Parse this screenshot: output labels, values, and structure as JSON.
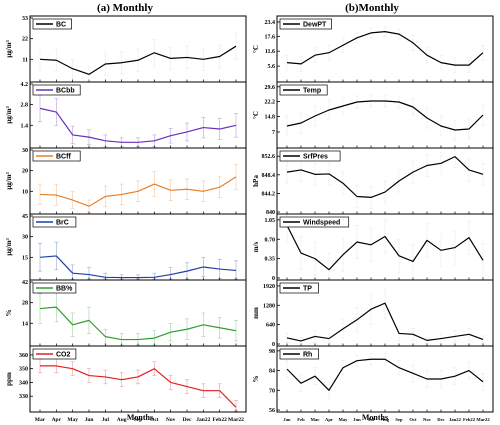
{
  "panel_titles": {
    "left": "(a) Monthly",
    "right": "(b)Monthly"
  },
  "chart_data": [
    {
      "type": "line",
      "panel": "left",
      "categories": [
        "Mar",
        "Apr",
        "May",
        "Jun",
        "Jul",
        "Aug",
        "Sep",
        "Oct",
        "Nov",
        "Dec",
        "Jan22",
        "Feb22",
        "Mar22"
      ],
      "xlabel": "Months",
      "subplots": [
        {
          "name": "BC",
          "ylabel": "μg/m³",
          "color": "#000000",
          "ylim": [
            0,
            33
          ],
          "yticks": [
            11,
            22,
            33
          ],
          "values": [
            11,
            10.5,
            6,
            3,
            8.5,
            9.2,
            10.5,
            14.5,
            11.5,
            12,
            11,
            12.5,
            18
          ],
          "errors": [
            6,
            6,
            5,
            4,
            6,
            6,
            6,
            7,
            6,
            6,
            6,
            6,
            7
          ]
        },
        {
          "name": "BCbb",
          "ylabel": "μg/m³",
          "color": "#6a2fb8",
          "ylim": [
            0,
            4.2
          ],
          "yticks": [
            1.4,
            2.8,
            4.2
          ],
          "values": [
            2.55,
            2.3,
            0.75,
            0.6,
            0.35,
            0.25,
            0.25,
            0.35,
            0.7,
            0.95,
            1.25,
            1.15,
            1.4
          ],
          "errors": [
            0.9,
            0.9,
            0.6,
            0.5,
            0.4,
            0.3,
            0.3,
            0.4,
            0.5,
            0.6,
            0.7,
            0.7,
            0.8
          ]
        },
        {
          "name": "BCff",
          "ylabel": "μg/m³",
          "color": "#e8802a",
          "ylim": [
            0,
            30
          ],
          "yticks": [
            10,
            20,
            30
          ],
          "values": [
            8.5,
            8.2,
            5.8,
            2.8,
            7.5,
            8.5,
            10,
            13.5,
            10.5,
            11,
            10,
            12,
            17
          ],
          "errors": [
            5,
            5,
            4,
            3,
            5,
            5,
            5,
            6,
            5,
            5,
            5,
            5,
            6
          ]
        },
        {
          "name": "BrC",
          "ylabel": "μg/m³",
          "color": "#1f3fa8",
          "ylim": [
            0,
            45
          ],
          "yticks": [
            15,
            30,
            45
          ],
          "values": [
            15,
            16,
            3.5,
            2.5,
            0.5,
            0.3,
            0.3,
            0.5,
            2.5,
            5,
            8,
            6.5,
            5.5
          ],
          "errors": [
            10,
            10,
            6,
            5,
            3,
            2,
            2,
            3,
            5,
            6,
            7,
            7,
            7
          ]
        },
        {
          "name": "BB%",
          "ylabel": "%",
          "color": "#2e9e2e",
          "ylim": [
            0,
            42
          ],
          "yticks": [
            14,
            28,
            42
          ],
          "values": [
            24,
            25,
            13,
            16,
            5,
            3,
            3,
            4,
            8,
            10,
            13,
            11,
            9
          ],
          "errors": [
            10,
            10,
            8,
            9,
            5,
            4,
            4,
            5,
            6,
            7,
            8,
            7,
            7
          ]
        },
        {
          "name": "CO2",
          "ylabel": "ppm",
          "color": "#e02020",
          "ylim": [
            320,
            365
          ],
          "yticks": [
            330,
            340,
            350,
            360
          ],
          "values": [
            352,
            352,
            350,
            345,
            344,
            342,
            344,
            350,
            340,
            337,
            334,
            334,
            322
          ],
          "errors": [
            5,
            5,
            5,
            5,
            5,
            5,
            5,
            5,
            5,
            5,
            5,
            5,
            5
          ]
        }
      ]
    },
    {
      "type": "line",
      "panel": "right",
      "categories": [
        "Jan",
        "Feb",
        "Mar",
        "Apr",
        "May",
        "Jun",
        "Jul",
        "Aug",
        "Sep",
        "Oct",
        "Nov",
        "Dec",
        "Jan22",
        "Feb22",
        "Mar22"
      ],
      "xlabel": "Months",
      "subplots": [
        {
          "name": "DewPT",
          "ylabel": "°C",
          "color": "#000000",
          "ylim": [
            0,
            25
          ],
          "yticks": [
            5.6,
            11.6,
            17.6,
            23.4
          ],
          "values": [
            7,
            6.5,
            10,
            11,
            14,
            17,
            19,
            19.5,
            18.5,
            15,
            10,
            7,
            6,
            6,
            11
          ],
          "errors": [
            3,
            3,
            3,
            3,
            3,
            2,
            2,
            2,
            2,
            3,
            3,
            3,
            3,
            3,
            3
          ]
        },
        {
          "name": "Temp",
          "ylabel": "°C",
          "color": "#000000",
          "ylim": [
            0,
            31
          ],
          "yticks": [
            7.0,
            14.8,
            22.2,
            29.6
          ],
          "values": [
            10,
            11.5,
            15,
            18,
            20,
            22,
            22.5,
            22.5,
            22,
            19.5,
            14,
            10,
            8,
            8.5,
            15.5
          ],
          "errors": [
            5,
            5,
            5,
            5,
            4,
            3,
            3,
            3,
            3,
            4,
            5,
            5,
            5,
            5,
            5
          ]
        },
        {
          "name": "SrfPres",
          "ylabel": "hPa",
          "color": "#000000",
          "ylim": [
            840,
            854
          ],
          "yticks": [
            840.0,
            844.2,
            848.4,
            852.6
          ],
          "values": [
            849,
            849.5,
            848.5,
            848.6,
            846.5,
            843.5,
            843.3,
            844.5,
            847,
            849,
            850.5,
            851,
            852.5,
            849.5,
            848.5
          ],
          "errors": [
            2.5,
            2.5,
            2.5,
            2.5,
            2.5,
            2.5,
            2.5,
            2.5,
            2.5,
            2.5,
            2.5,
            2.5,
            2.5,
            2.5,
            2.5
          ]
        },
        {
          "name": "Windspeed",
          "ylabel": "m/s",
          "color": "#000000",
          "ylim": [
            0,
            1.12
          ],
          "yticks": [
            0.0,
            0.35,
            0.7,
            1.05
          ],
          "values": [
            0.95,
            0.45,
            0.35,
            0.15,
            0.42,
            0.65,
            0.6,
            0.75,
            0.4,
            0.3,
            0.68,
            0.5,
            0.55,
            0.73,
            0.32
          ],
          "errors": [
            0.3,
            0.3,
            0.3,
            0.3,
            0.3,
            0.3,
            0.3,
            0.3,
            0.3,
            0.3,
            0.3,
            0.3,
            0.3,
            0.3,
            0.3
          ]
        },
        {
          "name": "TP",
          "ylabel": "mm",
          "color": "#000000",
          "ylim": [
            0,
            2050
          ],
          "yticks": [
            0,
            640,
            1280,
            1920
          ],
          "values": [
            200,
            100,
            250,
            180,
            500,
            800,
            1150,
            1350,
            350,
            320,
            120,
            180,
            250,
            320,
            150
          ],
          "errors": [
            150,
            120,
            200,
            150,
            300,
            400,
            500,
            500,
            250,
            200,
            100,
            150,
            200,
            200,
            120
          ]
        },
        {
          "name": "Rh",
          "ylabel": "%",
          "color": "#000000",
          "ylim": [
            56,
            100
          ],
          "yticks": [
            56,
            70,
            84,
            98
          ],
          "values": [
            85,
            75,
            80,
            70,
            86,
            91,
            92,
            92,
            86,
            82,
            78,
            78,
            80,
            84,
            76
          ],
          "errors": [
            6,
            6,
            6,
            6,
            5,
            4,
            4,
            4,
            5,
            6,
            6,
            6,
            6,
            6,
            6
          ]
        }
      ]
    }
  ]
}
